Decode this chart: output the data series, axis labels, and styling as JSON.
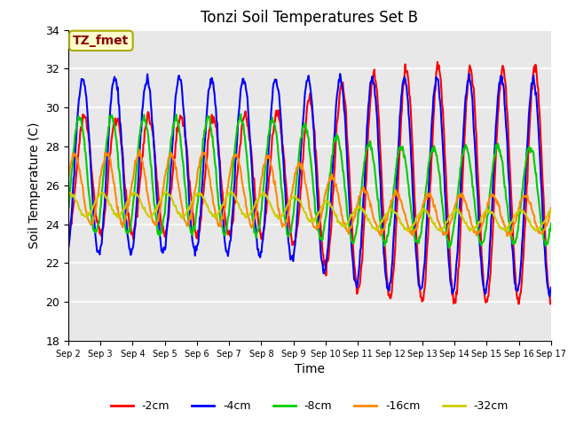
{
  "title": "Tonzi Soil Temperatures Set B",
  "xlabel": "Time",
  "ylabel": "Soil Temperature (C)",
  "ylim": [
    18,
    34
  ],
  "annotation": "TZ_fmet",
  "annotation_color": "#8B0000",
  "annotation_bg": "#FFFFCC",
  "series_labels": [
    "-2cm",
    "-4cm",
    "-8cm",
    "-16cm",
    "-32cm"
  ],
  "series_colors": [
    "#FF0000",
    "#0000FF",
    "#00CC00",
    "#FF8800",
    "#CCCC00"
  ],
  "x_tick_labels": [
    "Sep 2",
    "Sep 3",
    "Sep 4",
    "Sep 5",
    "Sep 6",
    "Sep 7",
    "Sep 8",
    "Sep 9",
    "Sep 10",
    "Sep 11",
    "Sep 12",
    "Sep 13",
    "Sep 14",
    "Sep 15",
    "Sep 16",
    "Sep 17"
  ],
  "background_color": "#E8E8E8",
  "grid_color": "#FFFFFF",
  "n_days": 15,
  "samples_per_day": 48
}
